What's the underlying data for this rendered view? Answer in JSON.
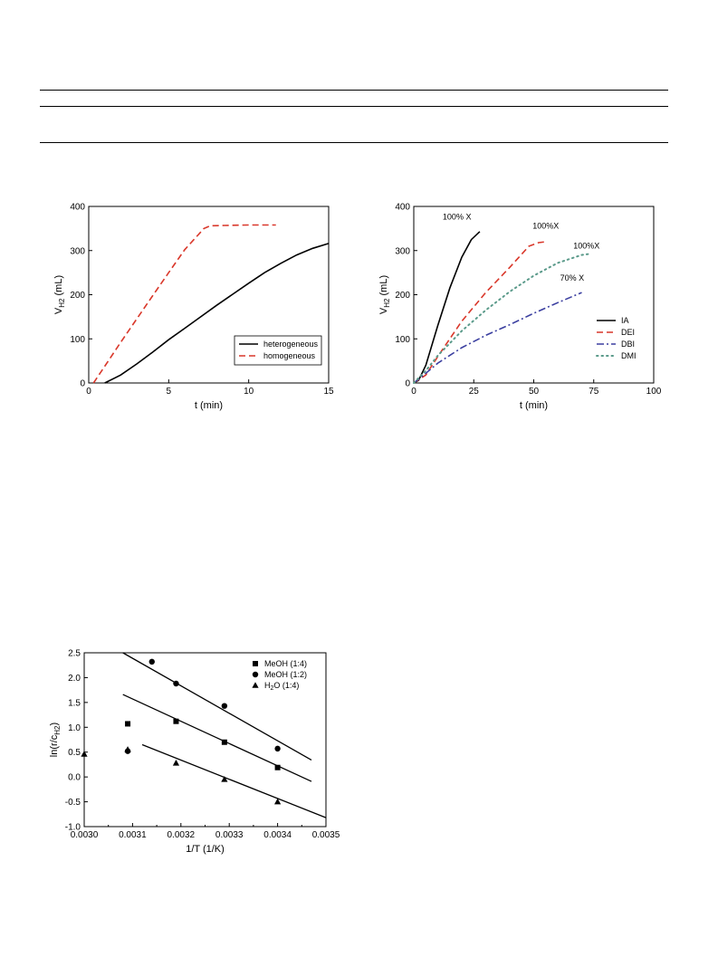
{
  "page": {
    "rules": [
      "top-rule",
      "header-rule",
      "table-bottom-rule"
    ]
  },
  "chart_data": [
    {
      "id": "chart1",
      "type": "line",
      "xlabel": "t (min)",
      "ylabel_main": "V",
      "ylabel_sub": "H2",
      "ylabel_suffix": " (mL)",
      "xlim": [
        0,
        15
      ],
      "ylim": [
        0,
        400
      ],
      "xticks": [
        0,
        5,
        10,
        15
      ],
      "yticks": [
        0,
        100,
        200,
        300,
        400
      ],
      "grid": false,
      "legend_position": "bottom-right",
      "series": [
        {
          "name": "heterogeneous",
          "color": "#000000",
          "dash": "solid",
          "points": [
            [
              1.0,
              0
            ],
            [
              2,
              18
            ],
            [
              3,
              43
            ],
            [
              4,
              70
            ],
            [
              5,
              98
            ],
            [
              6,
              124
            ],
            [
              7,
              150
            ],
            [
              8,
              176
            ],
            [
              9,
              201
            ],
            [
              10,
              226
            ],
            [
              11,
              250
            ],
            [
              12,
              271
            ],
            [
              13,
              290
            ],
            [
              14,
              305
            ],
            [
              15,
              316
            ]
          ]
        },
        {
          "name": "homogeneous",
          "color": "#d9372a",
          "dash": "dashed",
          "points": [
            [
              0.3,
              0
            ],
            [
              1,
              38
            ],
            [
              2,
              92
            ],
            [
              3,
              145
            ],
            [
              4,
              198
            ],
            [
              5,
              250
            ],
            [
              6,
              302
            ],
            [
              7.2,
              350
            ],
            [
              7.6,
              356
            ],
            [
              8.5,
              357
            ],
            [
              10,
              358
            ],
            [
              11.7,
              358
            ]
          ]
        }
      ]
    },
    {
      "id": "chart2",
      "type": "line",
      "xlabel": "t (min)",
      "ylabel_main": "V",
      "ylabel_sub": "H2",
      "ylabel_suffix": " (mL)",
      "xlim": [
        0,
        100
      ],
      "ylim": [
        0,
        400
      ],
      "xticks": [
        0,
        25,
        50,
        75,
        100
      ],
      "yticks": [
        0,
        100,
        200,
        300,
        400
      ],
      "grid": false,
      "legend_position": "bottom-right",
      "annotations": [
        {
          "text": "100% X",
          "x": 18,
          "y": 370
        },
        {
          "text": "100%X",
          "x": 55,
          "y": 350
        },
        {
          "text": "100%X",
          "x": 72,
          "y": 305
        },
        {
          "text": "70% X",
          "x": 66,
          "y": 232
        }
      ],
      "series": [
        {
          "name": "IA",
          "color": "#000000",
          "dash": "solid",
          "points": [
            [
              0,
              0
            ],
            [
              2,
              6
            ],
            [
              5,
              40
            ],
            [
              10,
              130
            ],
            [
              15,
              215
            ],
            [
              20,
              285
            ],
            [
              24,
              325
            ],
            [
              27.5,
              343
            ]
          ]
        },
        {
          "name": "DEI",
          "color": "#d9372a",
          "dash": "dashed",
          "points": [
            [
              0,
              0
            ],
            [
              5,
              18
            ],
            [
              10,
              60
            ],
            [
              20,
              140
            ],
            [
              30,
              205
            ],
            [
              40,
              262
            ],
            [
              48,
              310
            ],
            [
              52,
              318
            ],
            [
              55,
              320
            ]
          ]
        },
        {
          "name": "DBI",
          "color": "#3b3fa0",
          "dash": "dashdot",
          "points": [
            [
              0,
              0
            ],
            [
              5,
              22
            ],
            [
              10,
              45
            ],
            [
              20,
              80
            ],
            [
              30,
              108
            ],
            [
              40,
              132
            ],
            [
              50,
              158
            ],
            [
              60,
              182
            ],
            [
              70,
              205
            ]
          ]
        },
        {
          "name": "DMI",
          "color": "#5a9a8a",
          "dash": "dotted",
          "points": [
            [
              0,
              0
            ],
            [
              5,
              28
            ],
            [
              10,
              62
            ],
            [
              20,
              118
            ],
            [
              30,
              165
            ],
            [
              40,
              207
            ],
            [
              50,
              243
            ],
            [
              60,
              272
            ],
            [
              70,
              290
            ],
            [
              74,
              293
            ]
          ]
        }
      ]
    },
    {
      "id": "chart3",
      "type": "scatter",
      "xlabel": "1/T (1/K)",
      "ylabel": "ln(r/c",
      "ylabel_sub": "H2",
      "ylabel_suffix": ")",
      "xlim": [
        0.003,
        0.0035
      ],
      "ylim": [
        -1.0,
        2.5
      ],
      "xticks": [
        "0.0030",
        "0.0031",
        "0.0032",
        "0.0033",
        "0.0034",
        "0.0035"
      ],
      "yticks": [
        "-1.0",
        "-0.5",
        "0.0",
        "0.5",
        "1.0",
        "1.5",
        "2.0",
        "2.5"
      ],
      "grid": false,
      "legend_position": "top-right",
      "series": [
        {
          "name": "MeOH (1:4)",
          "name_main": "MeOH (1:4)",
          "marker": "square",
          "points": [
            [
              0.00309,
              1.07
            ],
            [
              0.00319,
              1.12
            ],
            [
              0.00329,
              0.7
            ],
            [
              0.0034,
              0.19
            ]
          ],
          "fit": [
            [
              0.00308,
              1.66
            ],
            [
              0.00347,
              -0.09
            ]
          ]
        },
        {
          "name": "MeOH (1:2)",
          "name_main": "MeOH (1:2)",
          "marker": "circle",
          "points": [
            [
              0.00309,
              0.52
            ],
            [
              0.00314,
              2.32
            ],
            [
              0.00319,
              1.88
            ],
            [
              0.00329,
              1.43
            ],
            [
              0.0034,
              0.57
            ]
          ],
          "fit": [
            [
              0.00308,
              2.5
            ],
            [
              0.00347,
              0.34
            ]
          ]
        },
        {
          "name": "H2O (1:4)",
          "name_prefix": "H",
          "name_sub": "2",
          "name_suffix": "O (1:4)",
          "marker": "triangle",
          "points": [
            [
              0.003,
              0.46
            ],
            [
              0.00309,
              0.55
            ],
            [
              0.00319,
              0.28
            ],
            [
              0.00329,
              -0.05
            ],
            [
              0.0034,
              -0.5
            ]
          ],
          "fit": [
            [
              0.00312,
              0.65
            ],
            [
              0.0035,
              -0.82
            ]
          ]
        }
      ]
    }
  ]
}
